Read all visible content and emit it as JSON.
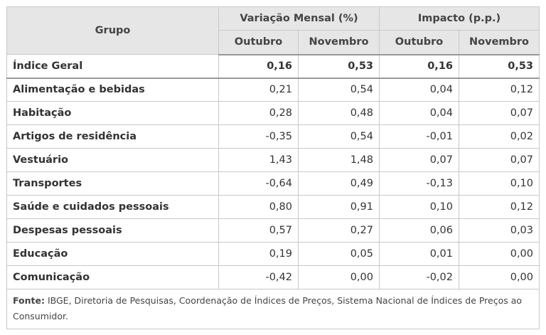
{
  "table": {
    "header": {
      "group_label": "Grupo",
      "monthly_label": "Variação Mensal (%)",
      "impact_label": "Impacto (p.p.)",
      "sub_labels": [
        "Outubro",
        "Novembro",
        "Outubro",
        "Novembro"
      ]
    },
    "rows": [
      {
        "label": "Índice Geral",
        "values": [
          "0,16",
          "0,53",
          "0,16",
          "0,53"
        ]
      },
      {
        "label": "Alimentação e bebidas",
        "values": [
          "0,21",
          "0,54",
          "0,04",
          "0,12"
        ]
      },
      {
        "label": "Habitação",
        "values": [
          "0,28",
          "0,48",
          "0,04",
          "0,07"
        ]
      },
      {
        "label": "Artigos de residência",
        "values": [
          "-0,35",
          "0,54",
          "-0,01",
          "0,02"
        ]
      },
      {
        "label": "Vestuário",
        "values": [
          "1,43",
          "1,48",
          "0,07",
          "0,07"
        ]
      },
      {
        "label": "Transportes",
        "values": [
          "-0,64",
          "0,49",
          "-0,13",
          "0,10"
        ]
      },
      {
        "label": "Saúde e cuidados pessoais",
        "values": [
          "0,80",
          "0,91",
          "0,10",
          "0,12"
        ]
      },
      {
        "label": "Despesas pessoais",
        "values": [
          "0,57",
          "0,27",
          "0,06",
          "0,03"
        ]
      },
      {
        "label": "Educação",
        "values": [
          "0,19",
          "0,05",
          "0,01",
          "0,00"
        ]
      },
      {
        "label": "Comunicação",
        "values": [
          "-0,42",
          "0,00",
          "-0,02",
          "0,00"
        ]
      }
    ],
    "source": {
      "label": "Fonte:",
      "text": " IBGE, Diretoria de Pesquisas, Coordenação de Índices de Preços, Sistema Nacional de Índices de Preços ao Consumidor."
    }
  }
}
